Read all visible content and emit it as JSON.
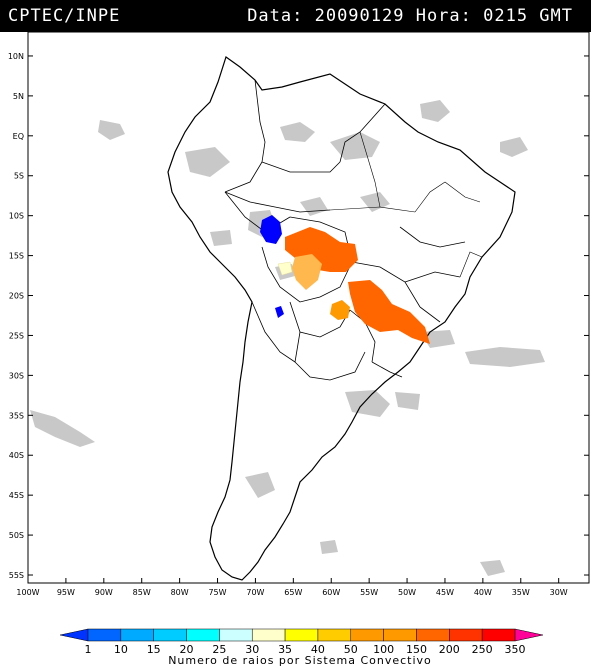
{
  "header": {
    "source": "CPTEC/INPE",
    "datetime": "Data: 20090129 Hora: 0215 GMT"
  },
  "map": {
    "lat_labels": [
      "10N",
      "5N",
      "EQ",
      "5S",
      "10S",
      "15S",
      "20S",
      "25S",
      "30S",
      "35S",
      "40S",
      "45S",
      "50S",
      "55S"
    ],
    "lat_values": [
      10,
      5,
      0,
      -5,
      -10,
      -15,
      -20,
      -25,
      -30,
      -35,
      -40,
      -45,
      -50,
      -55
    ],
    "lon_labels": [
      "100W",
      "95W",
      "90W",
      "85W",
      "80W",
      "75W",
      "70W",
      "65W",
      "60W",
      "55W",
      "50W",
      "45W",
      "40W",
      "35W",
      "30W"
    ],
    "lon_values": [
      -100,
      -95,
      -90,
      -85,
      -80,
      -75,
      -70,
      -65,
      -60,
      -55,
      -50,
      -45,
      -40,
      -35,
      -30
    ],
    "extent": {
      "lon": [
        -100,
        -26
      ],
      "lat": [
        -56,
        13
      ]
    },
    "cloud_color": "#c8c8c8",
    "storm_clusters": [
      {
        "lon": -68.5,
        "lat": -12.0,
        "color": "#0000ff"
      },
      {
        "lon": -67.5,
        "lat": -22.5,
        "color": "#0000ff"
      },
      {
        "lon": -59.0,
        "lat": -14.5,
        "color": "#ff6600"
      },
      {
        "lon": -52.0,
        "lat": -22.5,
        "color": "#ff6600"
      },
      {
        "lon": -58.0,
        "lat": -22.0,
        "color": "#ff9900"
      },
      {
        "lon": -63.0,
        "lat": -17.5,
        "color": "#ffb84d"
      },
      {
        "lon": -66.5,
        "lat": -16.5,
        "color": "#ffffcc"
      }
    ]
  },
  "colorbar": {
    "levels": [
      "1",
      "10",
      "15",
      "20",
      "25",
      "30",
      "35",
      "40",
      "50",
      "100",
      "150",
      "200",
      "250",
      "350"
    ],
    "colors": [
      "#0033ff",
      "#0066ff",
      "#00aaff",
      "#00ccff",
      "#00ffff",
      "#ccffff",
      "#ffffcc",
      "#ffff00",
      "#ffcc00",
      "#ff9900",
      "#ff9900",
      "#ff6600",
      "#ff3300",
      "#ff0000",
      "#ff0099"
    ],
    "title": "Numero de raios por Sistema Convectivo"
  }
}
